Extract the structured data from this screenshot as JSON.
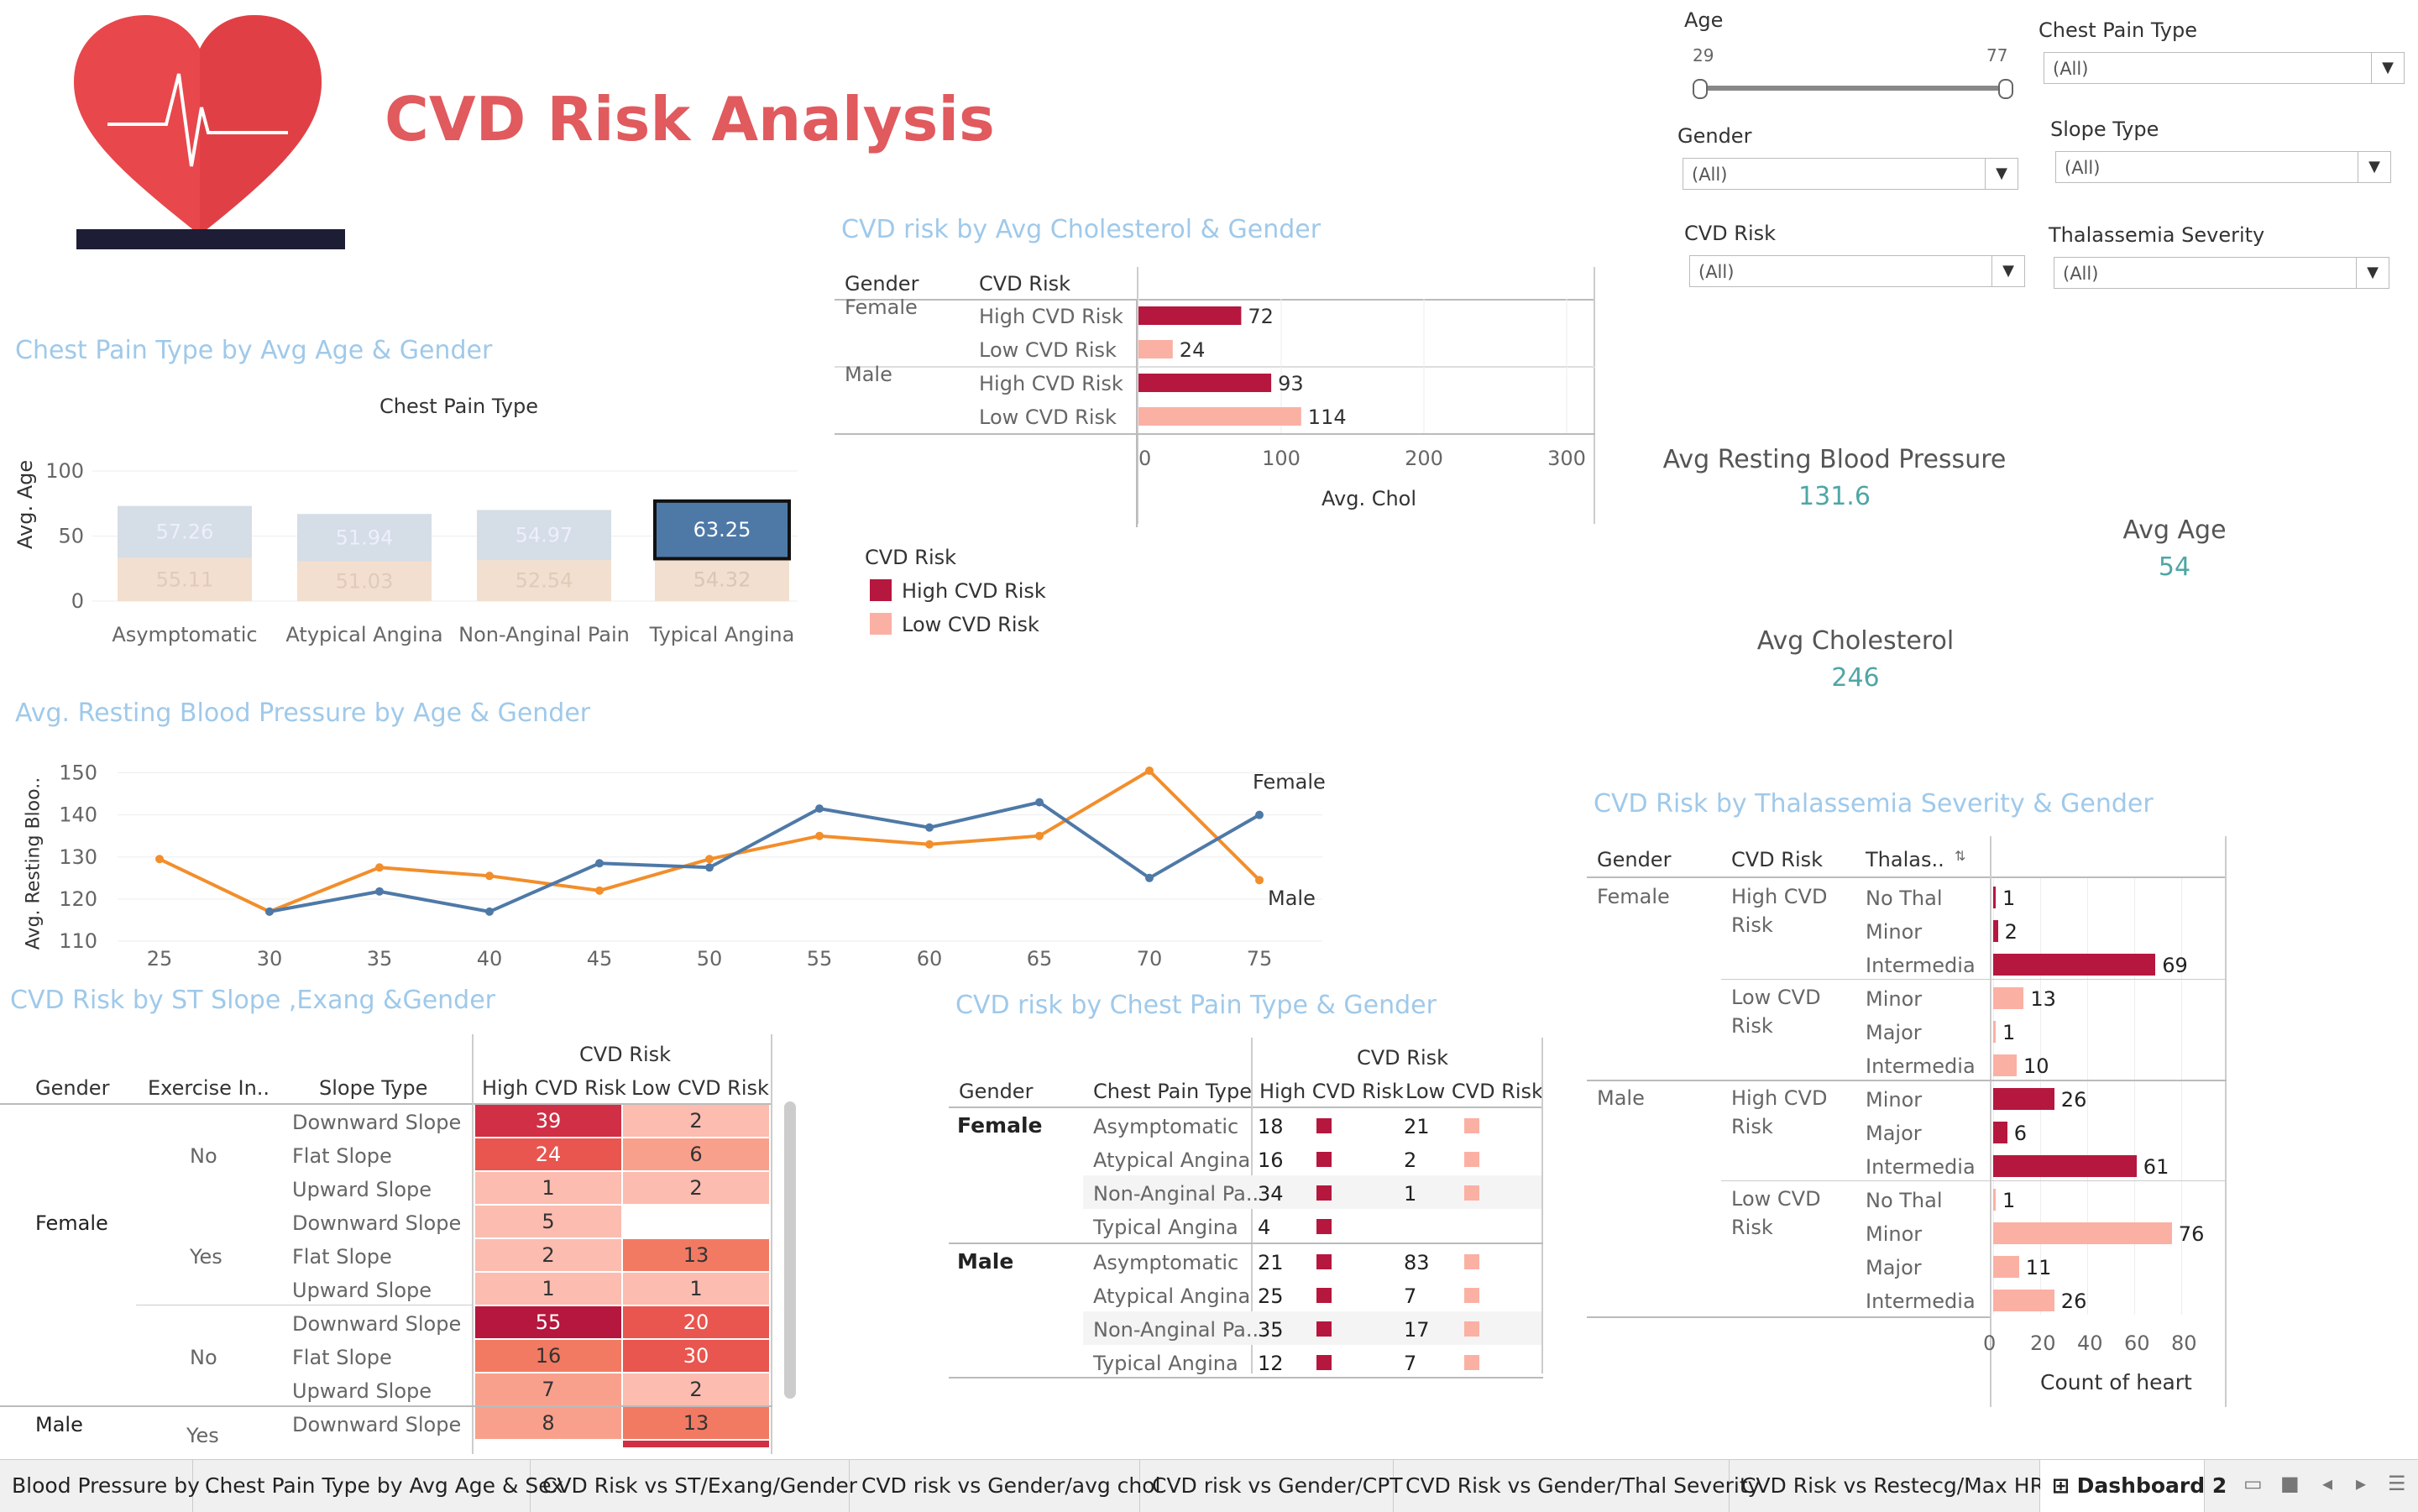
{
  "header": {
    "title": "CVD Risk Analysis"
  },
  "colors": {
    "high": "#b5173e",
    "low": "#fbb0a4",
    "accent_title": "#9fc9ea",
    "kpi": "#4fa6a6",
    "male_line": "#4e79a7",
    "female_line": "#f28e2b"
  },
  "filters": {
    "age": {
      "label": "Age",
      "min": "29",
      "max": "77"
    },
    "chest_pain": {
      "label": "Chest Pain Type",
      "value": "(All)"
    },
    "gender": {
      "label": "Gender",
      "value": "(All)"
    },
    "slope": {
      "label": "Slope Type",
      "value": "(All)"
    },
    "cvd_risk": {
      "label": "CVD Risk",
      "value": "(All)"
    },
    "thal": {
      "label": "Thalassemia Severity",
      "value": "(All)"
    }
  },
  "kpis": {
    "bp": {
      "label": "Avg Resting Blood Pressure",
      "value": "131.6"
    },
    "age": {
      "label": "Avg Age",
      "value": "54"
    },
    "chol": {
      "label": "Avg Cholesterol",
      "value": "246"
    }
  },
  "chest_pain_chart": {
    "title": "Chest Pain Type by Avg Age & Gender",
    "header": "Chest Pain Type",
    "ylabel": "Avg. Age",
    "yticks": [
      "100",
      "50",
      "0"
    ],
    "categories": [
      "Asymptomatic",
      "Atypical Angina",
      "Non-Anginal Pain",
      "Typical Angina"
    ],
    "top_values": [
      "57.26",
      "51.94",
      "54.97",
      "63.25"
    ],
    "bottom_values": [
      "55.11",
      "51.03",
      "52.54",
      "54.32"
    ]
  },
  "chol_chart": {
    "title": "CVD risk by Avg Cholesterol & Gender",
    "col_gender": "Gender",
    "col_risk": "CVD Risk",
    "rows": [
      {
        "gender": "Female",
        "risk": "High CVD Risk",
        "value": 72
      },
      {
        "gender": "",
        "risk": "Low CVD Risk",
        "value": 24
      },
      {
        "gender": "Male",
        "risk": "High CVD Risk",
        "value": 93
      },
      {
        "gender": "",
        "risk": "Low CVD Risk",
        "value": 114
      }
    ],
    "xticks": [
      "0",
      "100",
      "200",
      "300"
    ],
    "xlabel": "Avg. Chol"
  },
  "legend": {
    "title": "CVD Risk",
    "high": "High CVD Risk",
    "low": "Low CVD Risk"
  },
  "bp_chart": {
    "title": "Avg. Resting Blood Pressure by Age & Gender",
    "ylabel": "Avg. Resting Bloo..",
    "yticks": [
      "150",
      "140",
      "130",
      "120",
      "110"
    ],
    "xticks": [
      "25",
      "30",
      "35",
      "40",
      "45",
      "50",
      "55",
      "60",
      "65",
      "70",
      "75"
    ],
    "female_label": "Female",
    "male_label": "Male"
  },
  "chart_data": [
    {
      "type": "line",
      "title": "Avg. Resting Blood Pressure by Age & Gender",
      "ylabel": "Avg. Resting Bloo..",
      "ylim": [
        107,
        153
      ],
      "xlim": [
        22,
        80
      ],
      "series": [
        {
          "name": "Female",
          "x": [
            25,
            30,
            35,
            40,
            45,
            50,
            55,
            60,
            65,
            70,
            75
          ],
          "y": [
            129.5,
            117,
            127.5,
            125.5,
            122,
            129.5,
            135,
            133,
            135,
            150.5,
            124.5
          ]
        },
        {
          "name": "Male",
          "x": [
            30,
            35,
            40,
            45,
            50,
            55,
            60,
            65,
            70,
            75
          ],
          "y": [
            117,
            121.8,
            117,
            128.5,
            127.5,
            141.5,
            137,
            143,
            125,
            140
          ]
        }
      ]
    },
    {
      "type": "bar",
      "title": "CVD risk by Avg Cholesterol & Gender",
      "xlabel": "Avg. Chol",
      "xlim": [
        0,
        300
      ],
      "categories": [
        "Female High CVD Risk",
        "Female Low CVD Risk",
        "Male High CVD Risk",
        "Male Low CVD Risk"
      ],
      "values": [
        72,
        24,
        93,
        114
      ]
    },
    {
      "type": "bar",
      "title": "Chest Pain Type by Avg Age & Gender",
      "ylabel": "Avg. Age",
      "ylim": [
        0,
        125
      ],
      "categories": [
        "Asymptomatic",
        "Atypical Angina",
        "Non-Anginal Pain",
        "Typical Angina"
      ],
      "series": [
        {
          "values": [
            55.11,
            51.03,
            52.54,
            54.32
          ]
        },
        {
          "values": [
            57.26,
            51.94,
            54.97,
            63.25
          ]
        }
      ]
    },
    {
      "type": "bar",
      "title": "CVD Risk by Thalassemia Severity & Gender",
      "xlabel": "Count of heart",
      "xlim": [
        0,
        90
      ],
      "categories": [
        "Female High No Thal",
        "Female High Minor",
        "Female High Intermedia",
        "Female Low Minor",
        "Female Low Major",
        "Female Low Intermedia",
        "Male High Minor",
        "Male High Major",
        "Male High Intermedia",
        "Male Low No Thal",
        "Male Low Minor",
        "Male Low Major",
        "Male Low Intermedia"
      ],
      "values": [
        1,
        2,
        69,
        13,
        1,
        10,
        26,
        6,
        61,
        1,
        76,
        11,
        26
      ]
    }
  ],
  "thal_chart": {
    "title": "CVD Risk by Thalassemia Severity & Gender",
    "col_gender": "Gender",
    "col_risk": "CVD Risk",
    "col_thal": "Thalas..",
    "xticks": [
      "0",
      "20",
      "40",
      "60",
      "80"
    ],
    "xlabel": "Count of heart",
    "groups": [
      {
        "gender": "Female",
        "risk": [
          "High CVD",
          "Risk"
        ],
        "high": true,
        "rows": [
          [
            "No Thal",
            1
          ],
          [
            "Minor",
            2
          ],
          [
            "Intermedia",
            69
          ]
        ]
      },
      {
        "gender": "",
        "risk": [
          "Low CVD",
          "Risk"
        ],
        "high": false,
        "rows": [
          [
            "Minor",
            13
          ],
          [
            "Major",
            1
          ],
          [
            "Intermedia",
            10
          ]
        ]
      },
      {
        "gender": "Male",
        "risk": [
          "High CVD",
          "Risk"
        ],
        "high": true,
        "rows": [
          [
            "Minor",
            26
          ],
          [
            "Major",
            6
          ],
          [
            "Intermedia",
            61
          ]
        ]
      },
      {
        "gender": "",
        "risk": [
          "Low CVD",
          "Risk"
        ],
        "high": false,
        "rows": [
          [
            "No Thal",
            1
          ],
          [
            "Minor",
            76
          ],
          [
            "Major",
            11
          ],
          [
            "Intermedia",
            26
          ]
        ]
      }
    ]
  },
  "st_chart": {
    "title": "CVD Risk by  ST Slope ,Exang &Gender",
    "header": "CVD Risk",
    "cols": [
      "Gender",
      "Exercise In..",
      "Slope Type",
      "High CVD Risk",
      "Low CVD Risk"
    ],
    "rows": [
      {
        "gender": "",
        "exang": "",
        "slope": "Downward Slope",
        "high": "39",
        "low": "2"
      },
      {
        "gender": "",
        "exang": "No",
        "slope": "Flat Slope",
        "high": "24",
        "low": "6"
      },
      {
        "gender": "",
        "exang": "",
        "slope": "Upward Slope",
        "high": "1",
        "low": "2"
      },
      {
        "gender": "Female",
        "exang": "",
        "slope": "Downward Slope",
        "high": "5",
        "low": ""
      },
      {
        "gender": "",
        "exang": "Yes",
        "slope": "Flat Slope",
        "high": "2",
        "low": "13"
      },
      {
        "gender": "",
        "exang": "",
        "slope": "Upward Slope",
        "high": "1",
        "low": "1"
      },
      {
        "gender": "",
        "exang": "",
        "slope": "Downward Slope",
        "high": "55",
        "low": "20"
      },
      {
        "gender": "",
        "exang": "No",
        "slope": "Flat Slope",
        "high": "16",
        "low": "30"
      },
      {
        "gender": "",
        "exang": "",
        "slope": "Upward Slope",
        "high": "7",
        "low": "2"
      },
      {
        "gender": "Male",
        "exang": "",
        "slope": "Downward Slope",
        "high": "8",
        "low": "13"
      }
    ],
    "last_exang": "Yes"
  },
  "cpt_chart": {
    "title": "CVD risk by Chest Pain Type & Gender",
    "header": "CVD Risk",
    "cols": [
      "Gender",
      "Chest Pain Type",
      "High CVD Risk",
      "Low CVD Risk"
    ],
    "rows": [
      {
        "gender": "Female",
        "type": "Asymptomatic",
        "high": "18",
        "low": "21"
      },
      {
        "gender": "",
        "type": "Atypical Angina",
        "high": "16",
        "low": "2"
      },
      {
        "gender": "",
        "type": "Non-Anginal Pa..",
        "high": "34",
        "low": "1"
      },
      {
        "gender": "",
        "type": "Typical Angina",
        "high": "4",
        "low": ""
      },
      {
        "gender": "Male",
        "type": "Asymptomatic",
        "high": "21",
        "low": "83"
      },
      {
        "gender": "",
        "type": "Atypical Angina",
        "high": "25",
        "low": "7"
      },
      {
        "gender": "",
        "type": "Non-Anginal Pa..",
        "high": "35",
        "low": "17"
      },
      {
        "gender": "",
        "type": "Typical Angina",
        "high": "12",
        "low": "7"
      }
    ]
  },
  "tabs": [
    "Blood Pressure by ...",
    "Chest Pain Type by Avg Age & Sex",
    "CVD Risk vs ST/Exang/Gender",
    "CVD risk vs Gender/avg chol",
    "CVD risk vs Gender/CPT",
    "CVD Risk vs Gender/Thal Severity",
    "CVD Risk vs Restecg/Max HR",
    "Dashboard 2"
  ]
}
